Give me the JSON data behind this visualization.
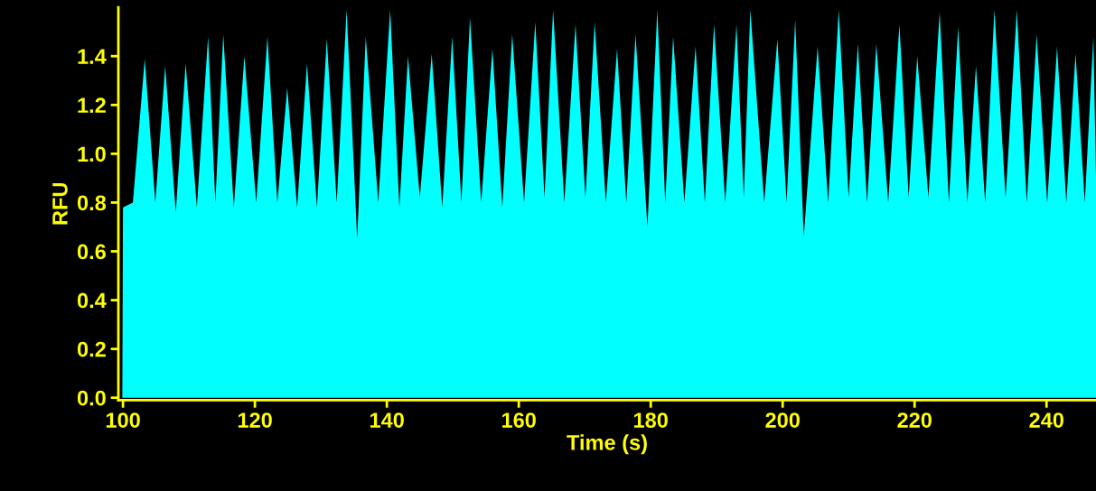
{
  "chart_data": {
    "type": "area",
    "xlabel": "Time (s)",
    "ylabel": "RFU",
    "x": [
      99.9,
      100.0,
      101.5,
      103.3,
      104.9,
      106.4,
      108.0,
      109.5,
      111.2,
      112.9,
      114.0,
      115.2,
      116.8,
      118.4,
      120.2,
      121.9,
      123.4,
      124.9,
      126.4,
      127.9,
      129.4,
      130.9,
      132.4,
      133.9,
      135.5,
      136.8,
      138.7,
      140.5,
      141.9,
      143.2,
      145.0,
      146.8,
      148.4,
      149.9,
      151.3,
      152.6,
      154.3,
      156.0,
      157.5,
      159.0,
      160.8,
      162.5,
      163.9,
      165.2,
      166.9,
      168.6,
      170.1,
      171.5,
      173.2,
      174.9,
      176.3,
      177.7,
      179.5,
      181.0,
      182.2,
      183.4,
      185.1,
      186.8,
      188.2,
      189.6,
      191.3,
      193.0,
      194.1,
      195.1,
      197.2,
      199.2,
      200.6,
      201.9,
      203.2,
      205.3,
      206.9,
      208.5,
      210.0,
      211.4,
      212.8,
      214.2,
      216.0,
      217.7,
      219.1,
      220.4,
      222.1,
      223.8,
      225.2,
      226.6,
      228.0,
      229.3,
      230.7,
      232.1,
      233.8,
      235.5,
      237.0,
      238.5,
      240.1,
      241.6,
      243.0,
      244.4,
      245.8,
      247.1,
      247.5
    ],
    "series": [
      {
        "color": "#00ffff",
        "values": [
          0,
          0.78,
          0.8,
          1.39,
          0.8,
          1.36,
          0.76,
          1.37,
          0.78,
          1.48,
          0.8,
          1.49,
          0.78,
          1.4,
          0.8,
          1.48,
          0.8,
          1.27,
          0.78,
          1.37,
          0.78,
          1.47,
          0.8,
          1.59,
          0.65,
          1.48,
          0.8,
          1.59,
          0.78,
          1.4,
          0.82,
          1.41,
          0.78,
          1.48,
          0.8,
          1.56,
          0.8,
          1.43,
          0.78,
          1.49,
          0.8,
          1.54,
          0.82,
          1.59,
          0.8,
          1.53,
          0.82,
          1.54,
          0.8,
          1.43,
          0.8,
          1.49,
          0.7,
          1.59,
          0.8,
          1.48,
          0.8,
          1.44,
          0.8,
          1.53,
          0.8,
          1.53,
          0.82,
          1.59,
          0.8,
          1.47,
          0.8,
          1.55,
          0.66,
          1.44,
          0.8,
          1.59,
          0.82,
          1.45,
          0.8,
          1.45,
          0.8,
          1.53,
          0.82,
          1.4,
          0.82,
          1.58,
          0.8,
          1.52,
          0.8,
          1.36,
          0.8,
          1.59,
          0.82,
          1.59,
          0.8,
          1.49,
          0.8,
          1.44,
          0.8,
          1.41,
          0.8,
          1.48,
          0.9
        ]
      }
    ],
    "xlim": [
      99.3,
      247.5
    ],
    "ylim": [
      -0.01,
      1.6
    ],
    "xticks": [
      100,
      120,
      140,
      160,
      180,
      200,
      220,
      240
    ],
    "yticks": [
      {
        "value": 0,
        "label": "0.0"
      },
      {
        "value": 0.2,
        "label": "0.2"
      },
      {
        "value": 0.4,
        "label": "0.4"
      },
      {
        "value": 0.6,
        "label": "0.6"
      },
      {
        "value": 0.8,
        "label": "0.8"
      },
      {
        "value": 1.0,
        "label": "1.0"
      },
      {
        "value": 1.2,
        "label": "1.2"
      },
      {
        "value": 1.4,
        "label": "1.4"
      }
    ],
    "grid": false,
    "legend": false
  }
}
